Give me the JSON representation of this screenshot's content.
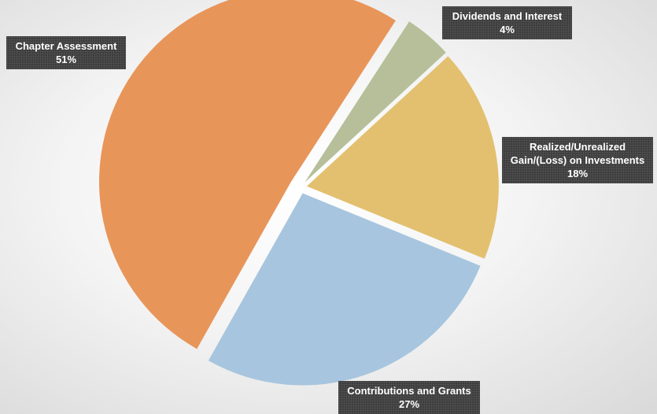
{
  "chart_data": {
    "type": "pie",
    "categories": [
      "Dividends and Interest",
      "Realized/Unrealized Gain/(Loss) on Investments",
      "Contributions and Grants",
      "Chapter Assessment"
    ],
    "values": [
      4,
      18,
      27,
      51
    ],
    "value_labels": [
      "4%",
      "18%",
      "27%",
      "51%"
    ],
    "colors": [
      "#b6bf99",
      "#e3c06f",
      "#a7c5de",
      "#e8955a"
    ]
  }
}
